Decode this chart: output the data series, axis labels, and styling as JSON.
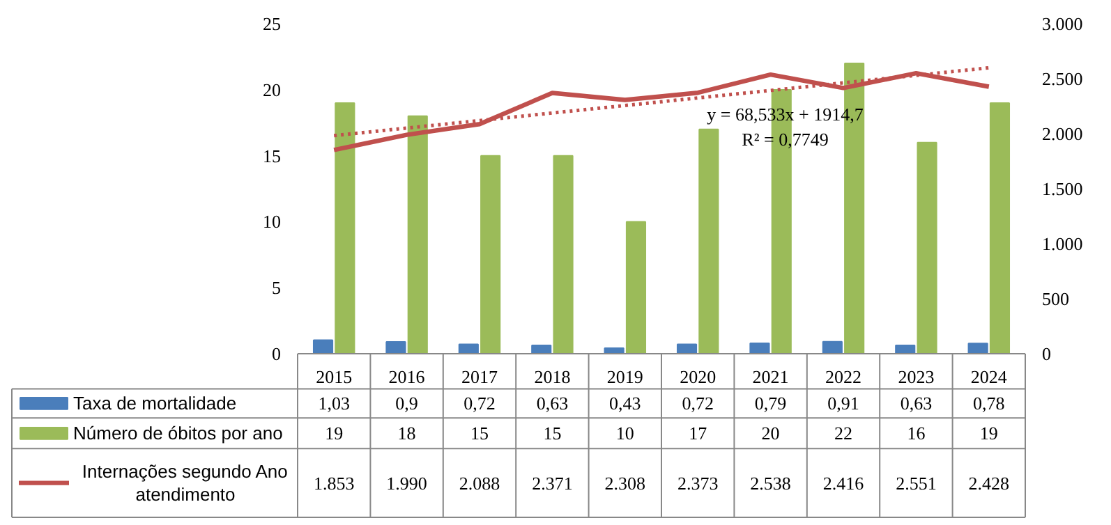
{
  "chart_data": {
    "type": "bar",
    "categories": [
      "2015",
      "2016",
      "2017",
      "2018",
      "2019",
      "2020",
      "2021",
      "2022",
      "2023",
      "2024"
    ],
    "series": [
      {
        "name": "Taxa de mortalidade",
        "color": "#4a7ebb",
        "values": [
          1.03,
          0.9,
          0.72,
          0.63,
          0.43,
          0.72,
          0.79,
          0.91,
          0.63,
          0.78
        ],
        "value_labels": [
          "1,03",
          "0,9",
          "0,72",
          "0,63",
          "0,43",
          "0,72",
          "0,79",
          "0,91",
          "0,63",
          "0,78"
        ]
      },
      {
        "name": "Número de óbitos por ano",
        "color": "#9bbb59",
        "values": [
          19,
          18,
          15,
          15,
          10,
          17,
          20,
          22,
          16,
          19
        ],
        "value_labels": [
          "19",
          "18",
          "15",
          "15",
          "10",
          "17",
          "20",
          "22",
          "16",
          "19"
        ]
      },
      {
        "name": "Internações segundo Ano atendimento",
        "type": "line",
        "axis": "y2",
        "color": "#c0504d",
        "marker": "none",
        "line_style": "solid",
        "values": [
          1853,
          1990,
          2088,
          2371,
          2308,
          2373,
          2538,
          2416,
          2551,
          2428
        ],
        "value_labels": [
          "1.853",
          "1.990",
          "2.088",
          "2.371",
          "2.308",
          "2.373",
          "2.538",
          "2.416",
          "2.551",
          "2.428"
        ]
      },
      {
        "type": "line",
        "axis": "y2",
        "color": "#c0504d",
        "marker": "none",
        "line_style": "dotted",
        "values": [
          1983,
          2052,
          2120,
          2189,
          2257,
          2326,
          2394,
          2463,
          2531,
          2600
        ]
      }
    ],
    "ylim": [
      0,
      25
    ],
    "yticks": [
      0,
      5,
      10,
      15,
      20,
      25
    ],
    "y2lim": [
      0,
      3000
    ],
    "y2ticks": [
      0,
      {
        "value": 500,
        "label": "500"
      },
      {
        "value": 1000,
        "label": "1.000"
      },
      {
        "value": 1500,
        "label": "1.500"
      },
      {
        "value": 2000,
        "label": "2.000"
      },
      {
        "value": 2500,
        "label": "2.500"
      },
      {
        "value": 3000,
        "label": "3.000"
      }
    ],
    "legend": "bottom left",
    "annotations": [
      "y = 68,533x + 1914,7",
      "R² = 0,7749"
    ]
  }
}
